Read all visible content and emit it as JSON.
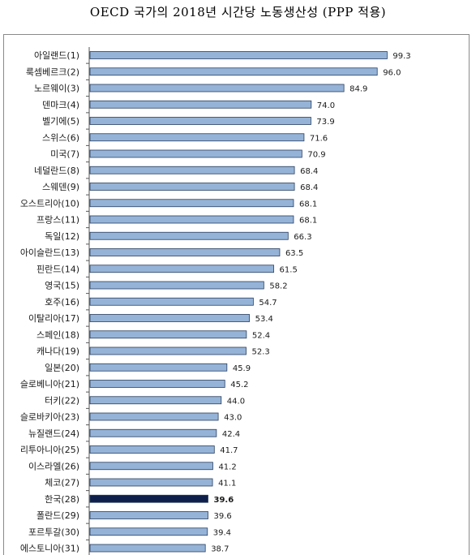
{
  "chart_data": {
    "type": "bar",
    "orientation": "horizontal",
    "title": "OECD 국가의 2018년 시간당 노동생산성 (PPP 적용)",
    "categories": [
      "아일랜드(1)",
      "룩셈베르크(2)",
      "노르웨이(3)",
      "덴마크(4)",
      "벨기에(5)",
      "스위스(6)",
      "미국(7)",
      "네덜란드(8)",
      "스웨덴(9)",
      "오스트리아(10)",
      "프랑스(11)",
      "독일(12)",
      "아이슬란드(13)",
      "핀란드(14)",
      "영국(15)",
      "호주(16)",
      "이탈리아(17)",
      "스페인(18)",
      "캐나다(19)",
      "일본(20)",
      "슬로베니아(21)",
      "터키(22)",
      "슬로바키아(23)",
      "뉴질랜드(24)",
      "리투아니아(25)",
      "이스라엘(26)",
      "체코(27)",
      "한국(28)",
      "폴란드(29)",
      "포르투갈(30)",
      "에스토니아(31)"
    ],
    "values": [
      99.3,
      96.0,
      84.9,
      74.0,
      73.9,
      71.6,
      70.9,
      68.4,
      68.4,
      68.1,
      68.1,
      66.3,
      63.5,
      61.5,
      58.2,
      54.7,
      53.4,
      52.4,
      52.3,
      45.9,
      45.2,
      44.0,
      43.0,
      42.4,
      41.7,
      41.2,
      41.1,
      39.6,
      39.6,
      39.4,
      38.7
    ],
    "value_labels": [
      "99.3",
      "96.0",
      "84.9",
      "74.0",
      "73.9",
      "71.6",
      "70.9",
      "68.4",
      "68.4",
      "68.1",
      "68.1",
      "66.3",
      "63.5",
      "61.5",
      "58.2",
      "54.7",
      "53.4",
      "52.4",
      "52.3",
      "45.9",
      "45.2",
      "44.0",
      "43.0",
      "42.4",
      "41.7",
      "41.2",
      "41.1",
      "39.6",
      "39.6",
      "39.4",
      "38.7"
    ],
    "highlight_category": "한국(28)",
    "xlim": [
      0,
      100
    ],
    "grid": false,
    "legend": "none",
    "colors": {
      "bar": "#95b3d7",
      "bar_border": "#2a3f5f",
      "highlight": "#0d1f4a"
    }
  }
}
